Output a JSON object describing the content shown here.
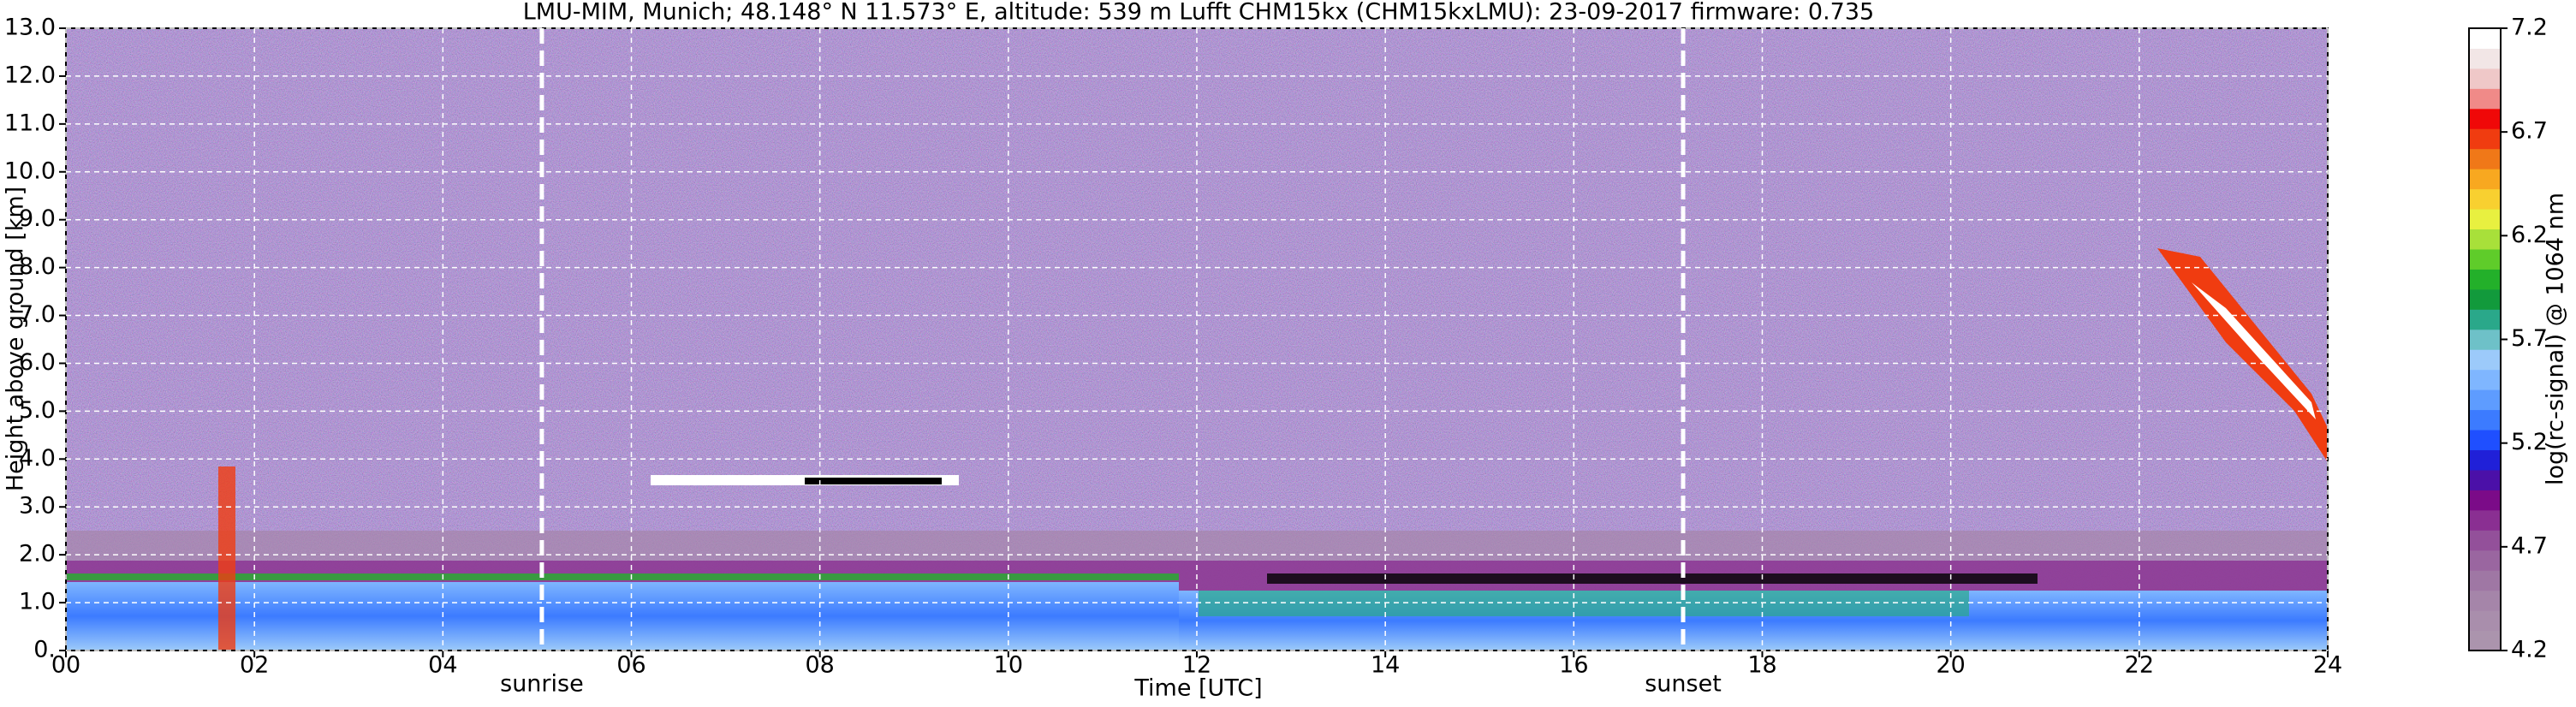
{
  "chart_data": {
    "type": "heatmap",
    "title": "LMU-MIM, Munich; 48.148° N 11.573° E, altitude: 539 m    Lufft CHM15kx (CHM15kxLMU): 23-09-2017    firmware: 0.735",
    "xlabel": "Time [UTC]",
    "ylabel": "Height above ground [km]",
    "xlim": [
      0,
      24
    ],
    "xticks": [
      {
        "value": 0,
        "label": "00"
      },
      {
        "value": 2,
        "label": "02"
      },
      {
        "value": 4,
        "label": "04"
      },
      {
        "value": 6,
        "label": "06"
      },
      {
        "value": 8,
        "label": "08"
      },
      10,
      12,
      14,
      16,
      18,
      20,
      22,
      24
    ],
    "ylim": [
      0,
      13
    ],
    "yticks": [
      {
        "value": 0,
        "label": "0."
      },
      {
        "value": 1,
        "label": "1.0"
      },
      {
        "value": 2,
        "label": "2.0"
      },
      {
        "value": 3,
        "label": "3.0"
      },
      {
        "value": 4,
        "label": "4.0"
      },
      {
        "value": 5,
        "label": "5.0"
      },
      {
        "value": 6,
        "label": "6.0"
      },
      {
        "value": 7,
        "label": "7.0"
      },
      {
        "value": 8,
        "label": "8.0"
      },
      {
        "value": 9,
        "label": "9.0"
      },
      {
        "value": 10,
        "label": "10.0"
      },
      {
        "value": 11,
        "label": "11.0"
      },
      {
        "value": 12,
        "label": "12.0"
      },
      {
        "value": 13,
        "label": "13.0"
      }
    ],
    "grid": true,
    "markers": [
      {
        "label": "sunrise",
        "x": 5.05
      },
      {
        "label": "sunset",
        "x": 17.16
      }
    ],
    "colorbar": {
      "label": "log(rc-signal) @ 1064 nm",
      "lim": [
        4.2,
        7.2
      ],
      "ticks": [
        4.2,
        4.7,
        5.2,
        5.7,
        6.2,
        6.7,
        7.2
      ],
      "colors": [
        "#ab94ad",
        "#a98eac",
        "#a585a9",
        "#9f77a4",
        "#9a66a0",
        "#93509a",
        "#8a2f92",
        "#7b0b88",
        "#4b10a8",
        "#2020d8",
        "#1f4fff",
        "#3c7bff",
        "#5e9cff",
        "#7fb6ff",
        "#9ccafa",
        "#6ec1c8",
        "#2aa88a",
        "#129a3c",
        "#23b02a",
        "#5fcc2a",
        "#a8e03a",
        "#e8f040",
        "#f8d030",
        "#f8a820",
        "#f07818",
        "#f03c10",
        "#f00808",
        "#f08a88",
        "#efc8c8",
        "#f2e6e6",
        "#ffffff"
      ]
    }
  }
}
